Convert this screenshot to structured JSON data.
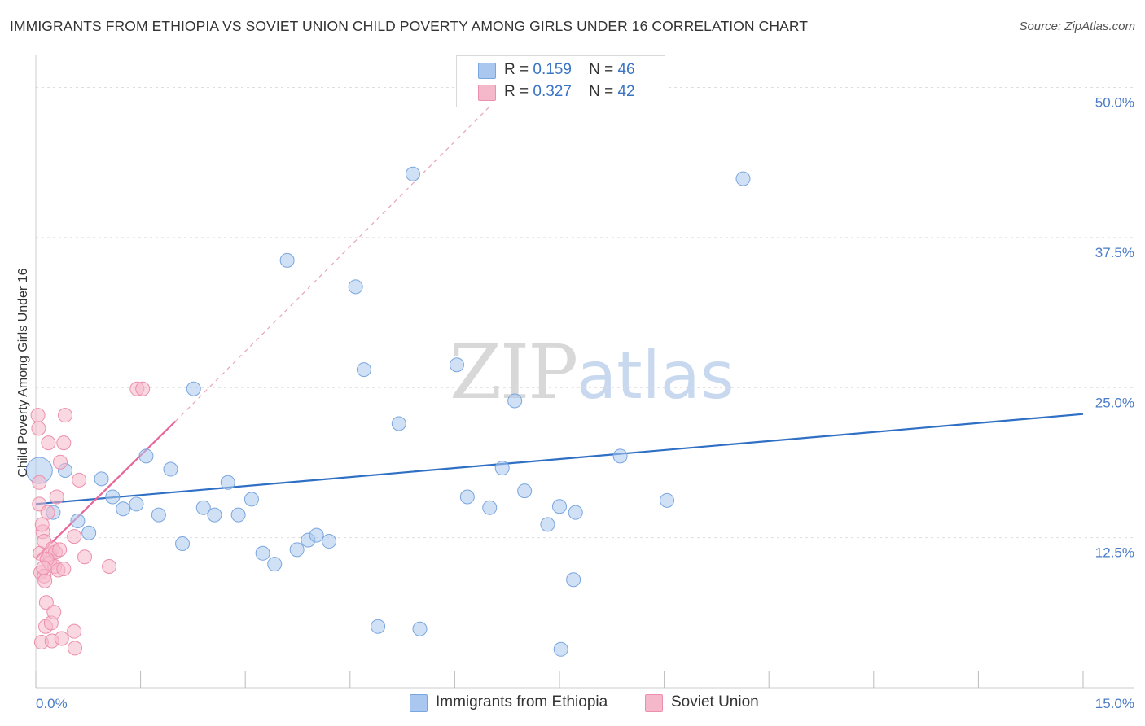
{
  "title": "IMMIGRANTS FROM ETHIOPIA VS SOVIET UNION CHILD POVERTY AMONG GIRLS UNDER 16 CORRELATION CHART",
  "source": "Source: ZipAtlas.com",
  "watermark": {
    "zip": "ZIP",
    "atlas": "atlas"
  },
  "legend": {
    "rows": [
      {
        "r_label": "R =",
        "r_value": "0.159",
        "n_label": "N =",
        "n_value": "46",
        "color": "#aac8ef"
      },
      {
        "r_label": "R =",
        "r_value": "0.327",
        "n_label": "N =",
        "n_value": "42",
        "color": "#f5b8ca"
      }
    ]
  },
  "bottom_legend": [
    {
      "label": "Immigrants from Ethiopia",
      "color": "#aac8ef"
    },
    {
      "label": "Soviet Union",
      "color": "#f5b8ca"
    }
  ],
  "chart_data": {
    "type": "scatter",
    "title": "IMMIGRANTS FROM ETHIOPIA VS SOVIET UNION CHILD POVERTY AMONG GIRLS UNDER 16 CORRELATION CHART",
    "xlabel": "",
    "ylabel": "Child Poverty Among Girls Under 16",
    "xlim": [
      0,
      15
    ],
    "ylim": [
      0,
      52
    ],
    "x_tick_labels": [
      {
        "value": 0,
        "label": "0.0%"
      },
      {
        "value": 15,
        "label": "15.0%"
      }
    ],
    "y_tick_labels": [
      {
        "value": 12.5,
        "label": "12.5%"
      },
      {
        "value": 25,
        "label": "25.0%"
      },
      {
        "value": 37.5,
        "label": "37.5%"
      },
      {
        "value": 50,
        "label": "50.0%"
      }
    ],
    "series": [
      {
        "name": "Immigrants from Ethiopia",
        "color": "#aac8ef",
        "stroke": "#7aa6df",
        "trend": {
          "x": [
            0,
            15
          ],
          "y": [
            15.3,
            22.8
          ],
          "color": "#2f6fc4",
          "dashed": false
        },
        "points": [
          {
            "x": 0.05,
            "y": 18.1,
            "big": true
          },
          {
            "x": 0.25,
            "y": 14.6
          },
          {
            "x": 0.42,
            "y": 18.1
          },
          {
            "x": 0.6,
            "y": 13.9
          },
          {
            "x": 0.76,
            "y": 12.9
          },
          {
            "x": 0.94,
            "y": 17.4
          },
          {
            "x": 1.1,
            "y": 15.9
          },
          {
            "x": 1.25,
            "y": 14.9
          },
          {
            "x": 1.44,
            "y": 15.3
          },
          {
            "x": 1.58,
            "y": 19.3
          },
          {
            "x": 1.76,
            "y": 14.4
          },
          {
            "x": 1.93,
            "y": 18.2
          },
          {
            "x": 2.1,
            "y": 12.0
          },
          {
            "x": 2.26,
            "y": 24.9
          },
          {
            "x": 2.4,
            "y": 15.0
          },
          {
            "x": 2.56,
            "y": 14.4
          },
          {
            "x": 2.75,
            "y": 17.1
          },
          {
            "x": 2.9,
            "y": 14.4
          },
          {
            "x": 3.09,
            "y": 15.7
          },
          {
            "x": 3.25,
            "y": 11.2
          },
          {
            "x": 3.42,
            "y": 10.3
          },
          {
            "x": 3.6,
            "y": 35.6
          },
          {
            "x": 3.74,
            "y": 11.5
          },
          {
            "x": 3.9,
            "y": 12.3
          },
          {
            "x": 4.02,
            "y": 12.7
          },
          {
            "x": 4.2,
            "y": 12.2
          },
          {
            "x": 4.58,
            "y": 33.4
          },
          {
            "x": 4.7,
            "y": 26.5
          },
          {
            "x": 4.9,
            "y": 5.1
          },
          {
            "x": 5.2,
            "y": 22.0
          },
          {
            "x": 5.4,
            "y": 42.8
          },
          {
            "x": 5.5,
            "y": 4.9
          },
          {
            "x": 6.03,
            "y": 26.9
          },
          {
            "x": 6.18,
            "y": 15.9
          },
          {
            "x": 6.5,
            "y": 15.0
          },
          {
            "x": 6.68,
            "y": 18.3
          },
          {
            "x": 6.86,
            "y": 23.9
          },
          {
            "x": 7.0,
            "y": 16.4
          },
          {
            "x": 7.33,
            "y": 13.6
          },
          {
            "x": 7.5,
            "y": 15.1
          },
          {
            "x": 7.52,
            "y": 3.2
          },
          {
            "x": 7.7,
            "y": 9.0
          },
          {
            "x": 7.73,
            "y": 14.6
          },
          {
            "x": 8.37,
            "y": 19.3
          },
          {
            "x": 9.04,
            "y": 15.6
          },
          {
            "x": 10.13,
            "y": 42.4
          }
        ]
      },
      {
        "name": "Soviet Union",
        "color": "#f5b8ca",
        "stroke": "#ec8fac",
        "trend": {
          "x": [
            0,
            2.0
          ],
          "y": [
            10.8,
            22.2
          ],
          "color": "#e8679a",
          "dashed": false
        },
        "trend_ext": {
          "x": [
            2.0,
            6.6
          ],
          "y": [
            22.2,
            49.0
          ],
          "color": "#e8a3bb",
          "dashed": true
        },
        "points": [
          {
            "x": 0.03,
            "y": 22.7
          },
          {
            "x": 0.04,
            "y": 21.6
          },
          {
            "x": 0.05,
            "y": 17.1
          },
          {
            "x": 0.05,
            "y": 15.3
          },
          {
            "x": 0.06,
            "y": 11.2
          },
          {
            "x": 0.07,
            "y": 9.6
          },
          {
            "x": 0.08,
            "y": 3.8
          },
          {
            "x": 0.1,
            "y": 13.0
          },
          {
            "x": 0.12,
            "y": 12.2
          },
          {
            "x": 0.12,
            "y": 9.3
          },
          {
            "x": 0.13,
            "y": 8.9
          },
          {
            "x": 0.14,
            "y": 5.1
          },
          {
            "x": 0.15,
            "y": 7.1
          },
          {
            "x": 0.17,
            "y": 14.6
          },
          {
            "x": 0.18,
            "y": 20.4
          },
          {
            "x": 0.2,
            "y": 11.1
          },
          {
            "x": 0.2,
            "y": 10.4
          },
          {
            "x": 0.22,
            "y": 5.4
          },
          {
            "x": 0.23,
            "y": 3.9
          },
          {
            "x": 0.24,
            "y": 11.6
          },
          {
            "x": 0.26,
            "y": 6.3
          },
          {
            "x": 0.27,
            "y": 10.1
          },
          {
            "x": 0.28,
            "y": 11.3
          },
          {
            "x": 0.3,
            "y": 15.9
          },
          {
            "x": 0.32,
            "y": 9.8
          },
          {
            "x": 0.34,
            "y": 11.5
          },
          {
            "x": 0.35,
            "y": 18.8
          },
          {
            "x": 0.37,
            "y": 4.1
          },
          {
            "x": 0.4,
            "y": 9.9
          },
          {
            "x": 0.4,
            "y": 20.4
          },
          {
            "x": 0.42,
            "y": 22.7
          },
          {
            "x": 0.55,
            "y": 4.7
          },
          {
            "x": 0.55,
            "y": 12.6
          },
          {
            "x": 0.56,
            "y": 3.3
          },
          {
            "x": 0.62,
            "y": 17.3
          },
          {
            "x": 0.7,
            "y": 10.9
          },
          {
            "x": 1.05,
            "y": 10.1
          },
          {
            "x": 1.45,
            "y": 24.9
          },
          {
            "x": 1.53,
            "y": 24.9
          },
          {
            "x": 0.09,
            "y": 13.6
          },
          {
            "x": 0.16,
            "y": 10.7
          },
          {
            "x": 0.11,
            "y": 10.0
          }
        ]
      }
    ]
  }
}
